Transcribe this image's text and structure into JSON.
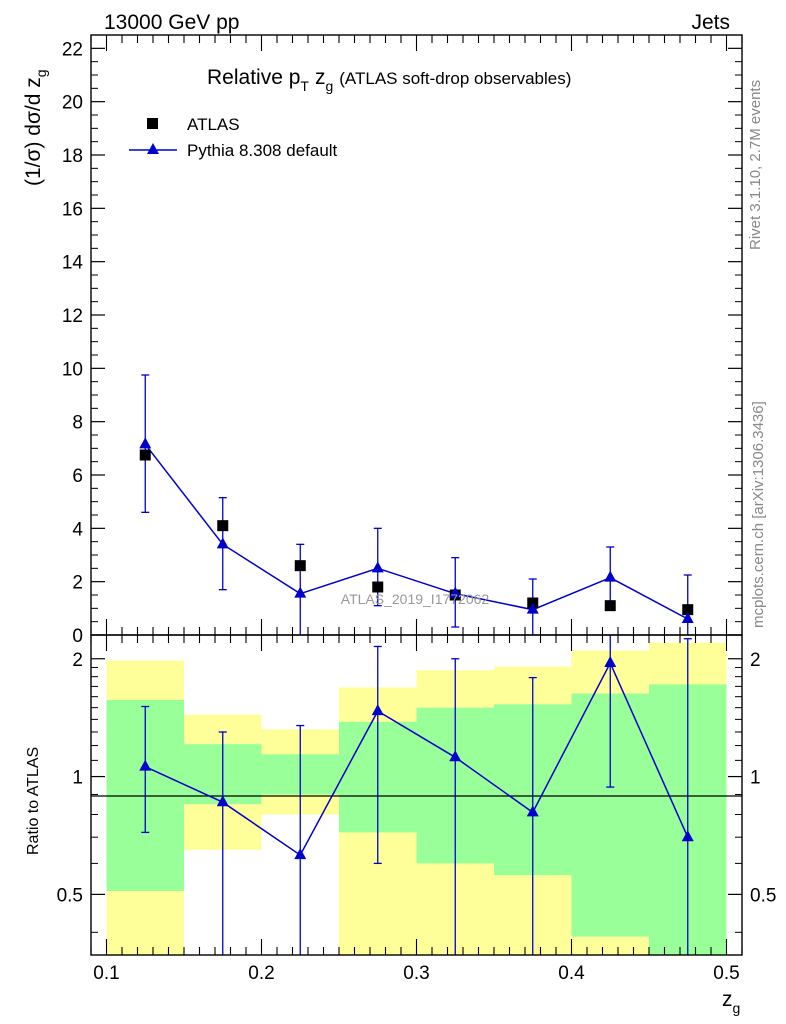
{
  "header": {
    "left": "13000 GeV pp",
    "right": "Jets"
  },
  "side_labels": {
    "rivet": "Rivet 3.1.10,  2.7M events",
    "mcplots": "mcplots.cern.ch [arXiv:1306.3436]"
  },
  "colors": {
    "mc": "#0000cc",
    "data": "#000000",
    "band_inner": "#99ff99",
    "band_outer": "#ffff99",
    "frame": "#000000"
  },
  "chart_data": [
    {
      "type": "scatter",
      "panel": "main",
      "title": "Relative p_T z_g (ATLAS soft-drop observables)",
      "title_parts": {
        "main": "Relative p",
        "sub_T": "T",
        "z": "z",
        "sub_g": "g",
        "rest": "(ATLAS soft-drop observables)"
      },
      "ylabel": "(1/σ) dσ/d z_g",
      "ylabel_parts": {
        "main": "(1/σ) dσ/d z",
        "sub": "g"
      },
      "watermark": "ATLAS_2019_I1772062",
      "xlim": [
        0.09,
        0.51
      ],
      "ylim": [
        0,
        22.5
      ],
      "x_ticks": [
        0.1,
        0.2,
        0.3,
        0.4,
        0.5
      ],
      "y_ticks": [
        0,
        2,
        4,
        6,
        8,
        10,
        12,
        14,
        16,
        18,
        20,
        22
      ],
      "y_tick_labels": [
        "0",
        "2",
        "4",
        "6",
        "8",
        "10",
        "12",
        "14",
        "16",
        "18",
        "20",
        "22"
      ],
      "legend_placement": "top-left",
      "series": [
        {
          "name": "ATLAS",
          "marker": "square",
          "x": [
            0.125,
            0.175,
            0.225,
            0.275,
            0.325,
            0.375,
            0.425,
            0.475
          ],
          "values": [
            6.75,
            4.1,
            2.6,
            1.8,
            1.5,
            1.2,
            1.1,
            0.95
          ]
        },
        {
          "name": "Pythia 8.308 default",
          "marker": "triangle",
          "line": true,
          "x": [
            0.125,
            0.175,
            0.225,
            0.275,
            0.325,
            0.375,
            0.425,
            0.475
          ],
          "values": [
            7.15,
            3.4,
            1.55,
            2.5,
            1.55,
            0.95,
            2.15,
            0.6
          ],
          "err_up": [
            2.6,
            1.75,
            1.85,
            1.5,
            1.35,
            1.15,
            1.15,
            1.65
          ],
          "err_down": [
            2.55,
            1.7,
            1.6,
            1.4,
            1.25,
            0.95,
            1.05,
            0.6
          ]
        }
      ]
    },
    {
      "type": "scatter",
      "panel": "ratio",
      "ylabel": "Ratio to ATLAS",
      "xlabel": "z_g",
      "xlabel_parts": {
        "main": "z",
        "sub": "g"
      },
      "xlim": [
        0.09,
        0.51
      ],
      "ylim": [
        0.35,
        2.3
      ],
      "log_y": true,
      "x_ticks": [
        0.1,
        0.2,
        0.3,
        0.4,
        0.5
      ],
      "x_tick_labels": [
        "0.1",
        "0.2",
        "0.3",
        "0.4",
        "0.5"
      ],
      "y_ticks": [
        0.5,
        1,
        2
      ],
      "y_tick_labels": [
        "0.5",
        "1",
        "2"
      ],
      "reference_line": 1,
      "bands": {
        "edges": [
          0.1,
          0.15,
          0.2,
          0.25,
          0.3,
          0.35,
          0.4,
          0.45,
          0.5
        ],
        "outer_low": [
          0.35,
          0.65,
          0.8,
          0.35,
          0.35,
          0.35,
          0.35,
          0.35
        ],
        "outer_high": [
          1.98,
          1.44,
          1.32,
          1.69,
          1.87,
          1.91,
          2.1,
          2.2
        ],
        "inner_low": [
          0.51,
          0.85,
          0.9,
          0.72,
          0.6,
          0.56,
          0.39,
          0.35
        ],
        "inner_high": [
          1.57,
          1.21,
          1.14,
          1.38,
          1.5,
          1.53,
          1.63,
          1.72
        ]
      },
      "series": [
        {
          "name": "Pythia 8.308 default",
          "x": [
            0.125,
            0.175,
            0.225,
            0.275,
            0.325,
            0.375,
            0.425,
            0.475
          ],
          "values": [
            1.06,
            0.86,
            0.63,
            1.47,
            1.12,
            0.81,
            1.95,
            0.7
          ],
          "err_up": [
            1.51,
            1.3,
            1.35,
            2.15,
            2.0,
            1.79,
            2.35,
            2.25
          ],
          "err_down": [
            0.72,
            0.35,
            0.35,
            0.6,
            0.35,
            0.35,
            0.94,
            0.35
          ]
        }
      ]
    }
  ]
}
